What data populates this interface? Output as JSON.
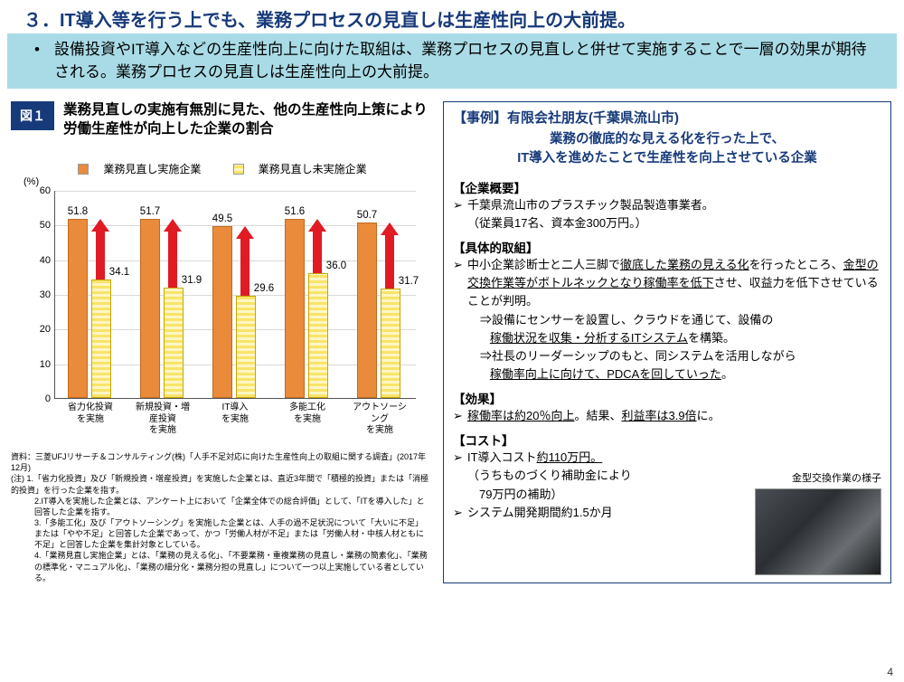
{
  "title": "３．IT導入等を行う上でも、業務プロセスの見直しは生産性向上の大前提。",
  "subtitle": "設備投資やIT導入などの生産性向上に向けた取組は、業務プロセスの見直しと併せて実施することで一層の効果が期待される。業務プロセスの見直しは生産性向上の大前提。",
  "page_number": "4",
  "figure": {
    "badge": "図１",
    "title": "業務見直しの実施有無別に見た、他の生産性向上策により労働生産性が向上した企業の割合",
    "legend_a": "業務見直し実施企業",
    "legend_b": "業務見直し未実施企業",
    "color_a": "#e98b3a",
    "color_b": "#f8e46a",
    "arrow_color": "#e01b24",
    "y_unit": "(%)",
    "ylim": [
      0,
      60
    ],
    "ytick": [
      0,
      10,
      20,
      30,
      40,
      50,
      60
    ],
    "categories": [
      "省力化投資\nを実施",
      "新規投資・増産投資\nを実施",
      "IT導入\nを実施",
      "多能工化\nを実施",
      "アウトソーシング\nを実施"
    ],
    "series_a": [
      51.8,
      51.7,
      49.5,
      51.6,
      50.7
    ],
    "series_b": [
      34.1,
      31.9,
      29.6,
      36.0,
      31.7
    ]
  },
  "notes": {
    "source": "資料：三菱UFJリサーチ＆コンサルティング(株)「人手不足対応に向けた生産性向上の取組に関する調査」(2017年12月)",
    "n1": "(注) 1.「省力化投資」及び「新規投資・増産投資」を実施した企業とは、直近3年間で「積極的投資」または「消極的投資」を行った企業を指す。",
    "n2": "2.IT導入を実施した企業とは、アンケート上において「企業全体での総合評価」として、「ITを導入した」と回答した企業を指す。",
    "n3": "3.「多能工化」及び「アウトソーシング」を実施した企業とは、人手の過不足状況について「大いに不足」または「やや不足」と回答した企業であって、かつ「労働人材が不足」または「労働人材・中核人材ともに不足」と回答した企業を集計対象としている。",
    "n4": "4.「業務見直し実施企業」とは、「業務の見える化」、「不要業務・重複業務の見直し・業務の簡素化」、「業務の標準化・マニュアル化」、「業務の細分化・業務分担の見直し」について一つ以上実施している者としている。"
  },
  "case": {
    "head": "【事例】有限会社朋友(千葉県流山市)",
    "lead1": "業務の徹底的な見える化を行った上で、",
    "lead2": "IT導入を進めたことで生産性を向上させている企業",
    "overview_h": "【企業概要】",
    "overview_1": "千葉県流山市のプラスチック製品製造事業者。",
    "overview_2": "（従業員17名、資本金300万円。）",
    "action_h": "【具体的取組】",
    "action_1a": "中小企業診断士と二人三脚で",
    "action_1b": "徹底した業務の見える化",
    "action_1c": "を行ったところ、",
    "action_1d": "金型の交換作業等がボトルネックとなり稼働率を低下",
    "action_1e": "させ、収益力を低下させていることが判明。",
    "action_arrow1a": "⇒設備にセンサーを設置し、クラウドを通じて、設備の",
    "action_arrow1b": "稼働状況を収集・分析するITシステム",
    "action_arrow1c": "を構築。",
    "action_arrow2a": "⇒社長のリーダーシップのもと、同システムを活用しながら",
    "action_arrow2b": "稼働率向上に向けて、PDCAを回していった",
    "action_arrow2c": "。",
    "effect_h": "【効果】",
    "effect_1a": "稼働率は約20％向上",
    "effect_1b": "。結果、",
    "effect_1c": "利益率は3.9倍",
    "effect_1d": "に。",
    "cost_h": "【コスト】",
    "cost_1a": "IT導入コスト",
    "cost_1b": "約110万円。",
    "cost_2": "（うちものづくり補助金により",
    "cost_3": "　79万円の補助）",
    "cost_4": "システム開発期間約1.5か月",
    "photo_caption": "金型交換作業の様子"
  }
}
